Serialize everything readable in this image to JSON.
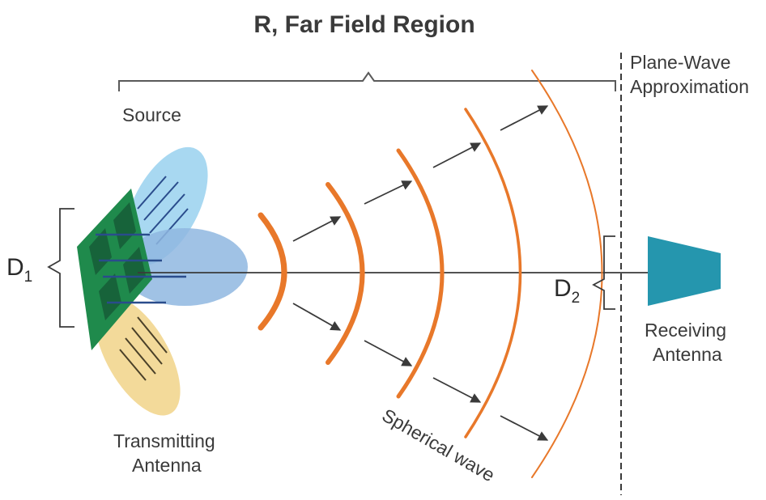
{
  "title": "R, Far Field Region",
  "labels": {
    "source": "Source",
    "plane_wave_line1": "Plane-Wave",
    "plane_wave_line2": "Approximation",
    "transmitting_line1": "Transmitting",
    "transmitting_line2": "Antenna",
    "receiving_line1": "Receiving",
    "receiving_line2": "Antenna",
    "spherical_wave": "Spherical wave",
    "d1_main": "D",
    "d1_sub": "1",
    "d2_main": "D",
    "d2_sub": "2"
  },
  "colors": {
    "wave": "#e8782a",
    "patch_green": "#1f8a4c",
    "patch_dark": "#17633a",
    "lobe_blue": "#9fd4ef",
    "lobe_yellow": "#f2d68f",
    "lobe_center": "#8fb7e0",
    "receiver": "#2596ae",
    "lines": "#3a3a3a"
  }
}
